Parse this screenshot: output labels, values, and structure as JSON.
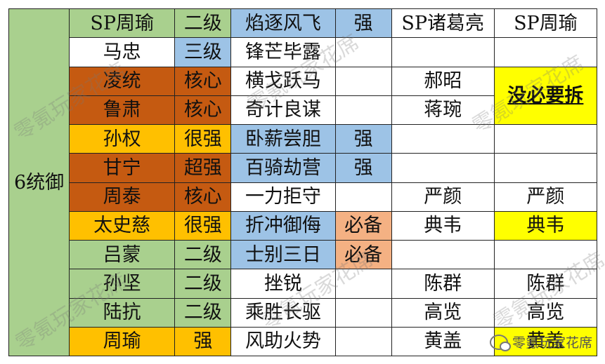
{
  "side_label": "6统御",
  "rows": [
    {
      "name": "SP周瑜",
      "grade": "二级",
      "skill": "焰逐风飞",
      "tag": "强",
      "sp_zhuge": "SP诸葛亮",
      "sp_zhouyu": "SP周瑜"
    },
    {
      "name": "马忠",
      "grade": "三级",
      "skill": "锋芒毕露",
      "tag": "",
      "sp_zhuge": "",
      "sp_zhouyu": ""
    },
    {
      "name": "凌统",
      "grade": "核心",
      "skill": "横戈跃马",
      "tag": "",
      "sp_zhuge": "郝昭",
      "sp_zhouyu": "没必要拆"
    },
    {
      "name": "鲁肃",
      "grade": "核心",
      "skill": "奇计良谋",
      "tag": "",
      "sp_zhuge": "蒋琬",
      "sp_zhouyu": ""
    },
    {
      "name": "孙权",
      "grade": "很强",
      "skill": "卧薪尝胆",
      "tag": "强",
      "sp_zhuge": "",
      "sp_zhouyu": ""
    },
    {
      "name": "甘宁",
      "grade": "超强",
      "skill": "百骑劫营",
      "tag": "强",
      "sp_zhuge": "",
      "sp_zhouyu": ""
    },
    {
      "name": "周泰",
      "grade": "核心",
      "skill": "一力拒守",
      "tag": "",
      "sp_zhuge": "严颜",
      "sp_zhouyu": "严颜"
    },
    {
      "name": "太史慈",
      "grade": "很强",
      "skill": "折冲御侮",
      "tag": "必备",
      "sp_zhuge": "典韦",
      "sp_zhouyu": "典韦"
    },
    {
      "name": "吕蒙",
      "grade": "二级",
      "skill": "士别三日",
      "tag": "必备",
      "sp_zhuge": "",
      "sp_zhouyu": ""
    },
    {
      "name": "孙坚",
      "grade": "二级",
      "skill": "挫锐",
      "tag": "",
      "sp_zhuge": "陈群",
      "sp_zhouyu": "陈群"
    },
    {
      "name": "陆抗",
      "grade": "二级",
      "skill": "乘胜长驱",
      "tag": "",
      "sp_zhuge": "高览",
      "sp_zhouyu": "高览"
    },
    {
      "name": "周瑜",
      "grade": "强",
      "skill": "风助火势",
      "tag": "",
      "sp_zhuge": "黄盖",
      "sp_zhouyu": "黄盖"
    }
  ],
  "colors": {
    "green": "#a9d08e",
    "orange": "#c55a11",
    "gold": "#ffc000",
    "blue": "#9dc3e6",
    "peach": "#f4b183",
    "yellow": "#ffff00"
  },
  "watermark": "零氪玩家花席",
  "corner_watermark": "零氪玩家花席",
  "corner_icon": "wechat-icon"
}
